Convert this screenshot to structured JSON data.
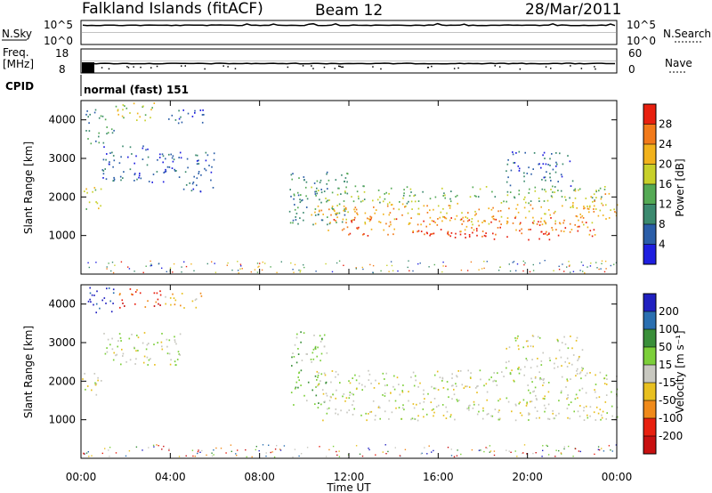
{
  "header": {
    "title": "Falkland Islands (fitACF)",
    "beam": "Beam 12",
    "date": "28/Mar/2011"
  },
  "aux": {
    "nsky_label": "N.Sky",
    "nsky_ticks": [
      "10^5",
      "10^0"
    ],
    "nsearch_label": "N.Search",
    "nsearch_ticks": [
      "10^5",
      "10^0"
    ],
    "freq_label": "Freq.",
    "freq_unit": "[MHz]",
    "freq_ticks": [
      "18",
      "8"
    ],
    "nave_label": "Nave",
    "nave_ticks": [
      "60",
      "0"
    ],
    "cpid_label": "CPID",
    "cpid_text": "normal (fast) 151"
  },
  "chart_data": [
    {
      "type": "heatmap",
      "name": "power",
      "ylabel": "Slant Range [km]",
      "yticks": [
        1000,
        2000,
        3000,
        4000
      ],
      "ylim": [
        0,
        4500
      ],
      "xticks": [
        "00:00",
        "04:00",
        "08:00",
        "12:00",
        "16:00",
        "20:00",
        "00:00"
      ],
      "xlim_hours": [
        0,
        24
      ],
      "colorbar": {
        "label": "Power [dB]",
        "ticks": [
          "4",
          "8",
          "12",
          "16",
          "20",
          "24",
          "28"
        ],
        "colors": [
          "#1f1fe0",
          "#2b5ea8",
          "#3c8a6f",
          "#55aa55",
          "#c8d02a",
          "#f2b21c",
          "#f27a1a",
          "#e8200f"
        ]
      },
      "regions": [
        {
          "t": [
            0.2,
            1.5
          ],
          "r": [
            3400,
            4300
          ],
          "level": 2
        },
        {
          "t": [
            1.2,
            3.5
          ],
          "r": [
            4000,
            4450
          ],
          "level": 4
        },
        {
          "t": [
            3.5,
            5.5
          ],
          "r": [
            3900,
            4300
          ],
          "level": 1
        },
        {
          "t": [
            0.0,
            0.9
          ],
          "r": [
            1650,
            2300
          ],
          "level": 4
        },
        {
          "t": [
            0.9,
            4.0
          ],
          "r": [
            2400,
            3400
          ],
          "level": 1
        },
        {
          "t": [
            4.0,
            6.0
          ],
          "r": [
            2100,
            3200
          ],
          "level": 1
        },
        {
          "t": [
            9.3,
            12.0
          ],
          "r": [
            1300,
            2700
          ],
          "level": 2
        },
        {
          "t": [
            10.0,
            23.5
          ],
          "r": [
            1850,
            2300
          ],
          "level": 3
        },
        {
          "t": [
            10.3,
            23.0
          ],
          "r": [
            1300,
            1850
          ],
          "level": 5
        },
        {
          "t": [
            11.0,
            23.0
          ],
          "r": [
            1000,
            1500
          ],
          "level": 6
        },
        {
          "t": [
            15.0,
            21.0
          ],
          "r": [
            900,
            1150
          ],
          "level": 7
        },
        {
          "t": [
            19.0,
            22.0
          ],
          "r": [
            2300,
            3200
          ],
          "level": 1
        },
        {
          "t": [
            22.0,
            24.0
          ],
          "r": [
            1400,
            2200
          ],
          "level": 5
        }
      ]
    },
    {
      "type": "heatmap",
      "name": "velocity",
      "ylabel": "Slant Range [km]",
      "yticks": [
        1000,
        2000,
        3000,
        4000
      ],
      "ylim": [
        0,
        4500
      ],
      "xlabel": "Time UT",
      "xticks": [
        "00:00",
        "04:00",
        "08:00",
        "12:00",
        "16:00",
        "20:00",
        "00:00"
      ],
      "xlim_hours": [
        0,
        24
      ],
      "colorbar": {
        "label": "Velocity [m s⁻¹]",
        "ticks": [
          "200",
          "100",
          "50",
          "15",
          "-15",
          "-50",
          "-100",
          "-200"
        ],
        "colors": [
          "#2020c0",
          "#2a6fb0",
          "#3a8f3a",
          "#7ccf3a",
          "#c8c8c0",
          "#e8c020",
          "#f08a1a",
          "#e8200f",
          "#c81010"
        ]
      },
      "regions": [
        {
          "t": [
            0.3,
            1.6
          ],
          "r": [
            3700,
            4450
          ],
          "level": 0
        },
        {
          "t": [
            1.6,
            3.6
          ],
          "r": [
            3900,
            4450
          ],
          "level": 7
        },
        {
          "t": [
            3.6,
            5.5
          ],
          "r": [
            3900,
            4300
          ],
          "level": 5
        },
        {
          "t": [
            0.0,
            1.0
          ],
          "r": [
            1650,
            2300
          ],
          "level": 4
        },
        {
          "t": [
            1.0,
            4.5
          ],
          "r": [
            2400,
            3300
          ],
          "level": 4
        },
        {
          "t": [
            9.4,
            11.0
          ],
          "r": [
            1400,
            3300
          ],
          "level": 3
        },
        {
          "t": [
            10.5,
            24.0
          ],
          "r": [
            1000,
            2300
          ],
          "level": 4
        },
        {
          "t": [
            19.0,
            22.5
          ],
          "r": [
            2300,
            3200
          ],
          "level": 4
        }
      ]
    }
  ]
}
